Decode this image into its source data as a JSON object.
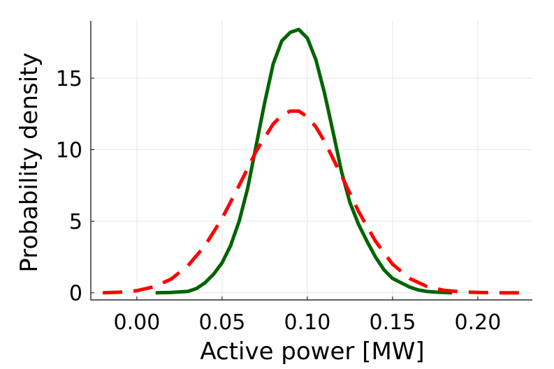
{
  "chart_data": {
    "type": "line",
    "xlabel": "Active power [MW]",
    "ylabel": "Probability density",
    "xlim": [
      -0.027,
      0.232
    ],
    "ylim": [
      -0.5,
      19.0
    ],
    "grid": true,
    "x_ticks": [
      0.0,
      0.05,
      0.1,
      0.15,
      0.2
    ],
    "x_tick_labels": [
      "0.00",
      "0.05",
      "0.10",
      "0.15",
      "0.20"
    ],
    "y_ticks": [
      0,
      5,
      10,
      15
    ],
    "y_tick_labels": [
      "0",
      "5",
      "10",
      "15"
    ],
    "series": [
      {
        "style": "solid",
        "color": "#006400",
        "x": [
          0.011,
          0.02,
          0.03,
          0.035,
          0.04,
          0.045,
          0.05,
          0.055,
          0.06,
          0.065,
          0.07,
          0.075,
          0.08,
          0.085,
          0.09,
          0.095,
          0.1,
          0.105,
          0.11,
          0.115,
          0.12,
          0.125,
          0.13,
          0.135,
          0.14,
          0.145,
          0.15,
          0.155,
          0.16,
          0.165,
          0.17,
          0.175,
          0.18,
          0.185
        ],
        "y": [
          0.0,
          0.02,
          0.1,
          0.3,
          0.7,
          1.3,
          2.1,
          3.3,
          5.0,
          7.3,
          10.3,
          13.3,
          16.0,
          17.6,
          18.2,
          18.4,
          17.8,
          16.3,
          14.0,
          11.3,
          8.5,
          6.3,
          4.8,
          3.6,
          2.5,
          1.6,
          1.0,
          0.7,
          0.4,
          0.2,
          0.1,
          0.05,
          0.02,
          0.0
        ]
      },
      {
        "style": "dashed",
        "color": "#ff0000",
        "x": [
          -0.02,
          -0.01,
          0.0,
          0.01,
          0.02,
          0.03,
          0.04,
          0.05,
          0.06,
          0.07,
          0.08,
          0.085,
          0.09,
          0.095,
          0.1,
          0.105,
          0.11,
          0.12,
          0.13,
          0.14,
          0.15,
          0.16,
          0.17,
          0.18,
          0.19,
          0.2,
          0.21,
          0.225
        ],
        "y": [
          0.0,
          0.04,
          0.15,
          0.42,
          0.95,
          1.9,
          3.3,
          5.2,
          7.5,
          9.9,
          11.8,
          12.4,
          12.7,
          12.7,
          12.3,
          11.6,
          10.6,
          8.2,
          5.7,
          3.6,
          2.0,
          1.0,
          0.45,
          0.18,
          0.06,
          0.02,
          0.0,
          0.0
        ]
      }
    ]
  }
}
